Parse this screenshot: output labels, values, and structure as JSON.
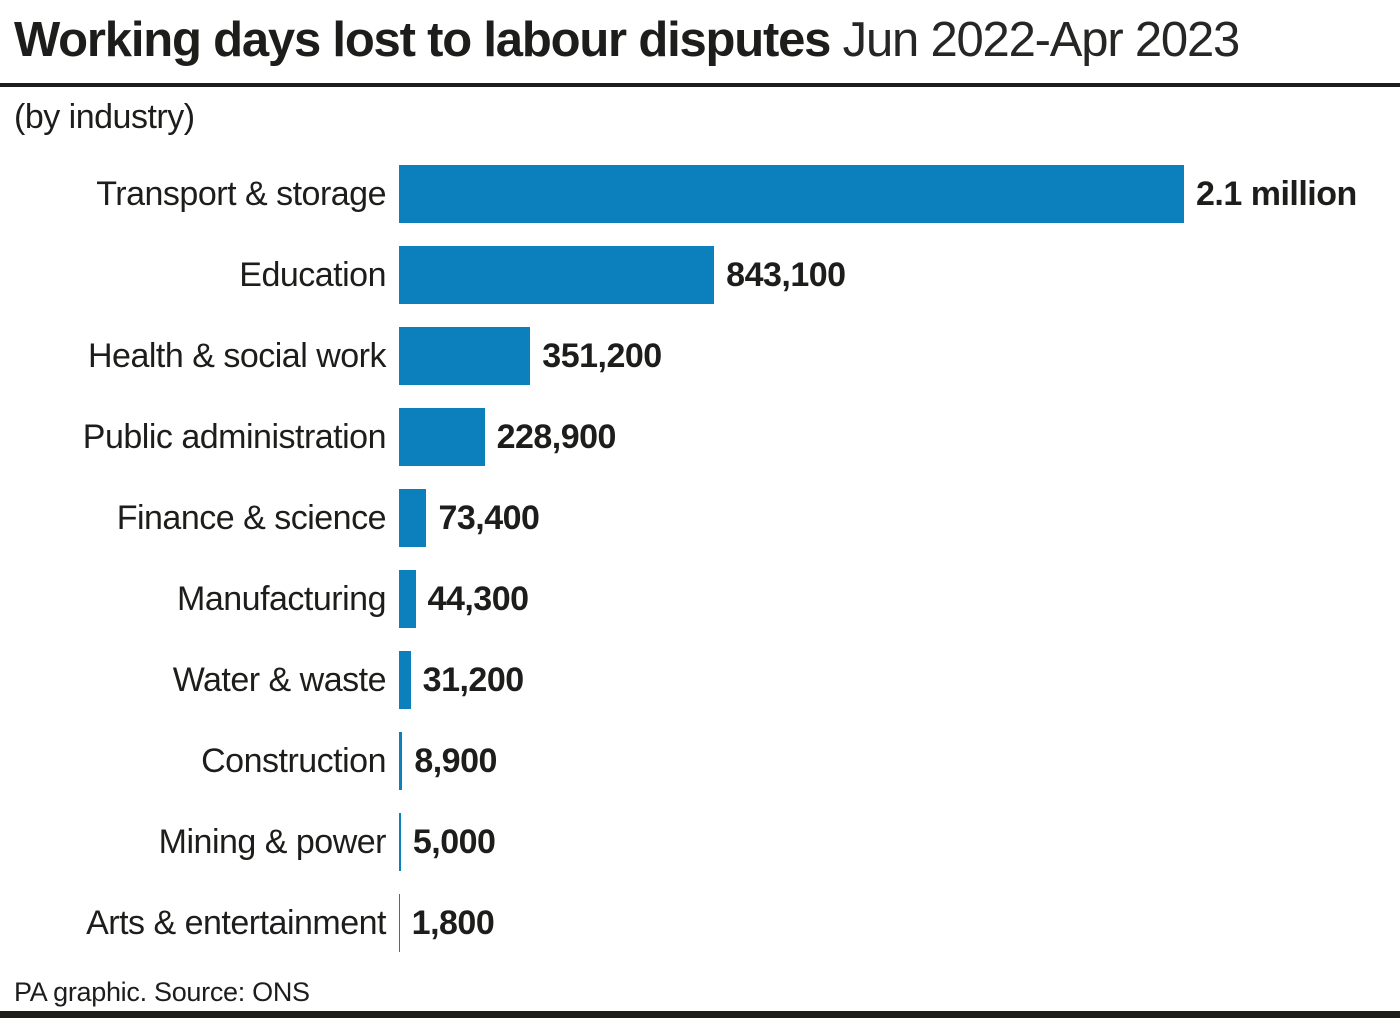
{
  "header": {
    "title": "Working days lost to labour disputes",
    "period": "Jun 2022-Apr 2023",
    "subtitle": "(by industry)"
  },
  "chart_data": {
    "type": "bar",
    "orientation": "horizontal",
    "title": "Working days lost to labour disputes",
    "period": "Jun 2022-Apr 2023",
    "subtitle": "(by industry)",
    "categories": [
      "Transport & storage",
      "Education",
      "Health & social work",
      "Public administration",
      "Finance & science",
      "Manufacturing",
      "Water & waste",
      "Construction",
      "Mining & power",
      "Arts & entertainment"
    ],
    "values": [
      2100000,
      843100,
      351200,
      228900,
      73400,
      44300,
      31200,
      8900,
      5000,
      1800
    ],
    "value_labels": [
      "2.1 million",
      "843,100",
      "351,200",
      "228,900",
      "73,400",
      "44,300",
      "31,200",
      "8,900",
      "5,000",
      "1,800"
    ],
    "xlim": [
      0,
      2100000
    ],
    "grid": false,
    "legend": "none",
    "bar_color": "#0b80bd",
    "text_color": "#1d1d1b"
  },
  "footer": {
    "source_text": "PA graphic. Source: ONS"
  }
}
